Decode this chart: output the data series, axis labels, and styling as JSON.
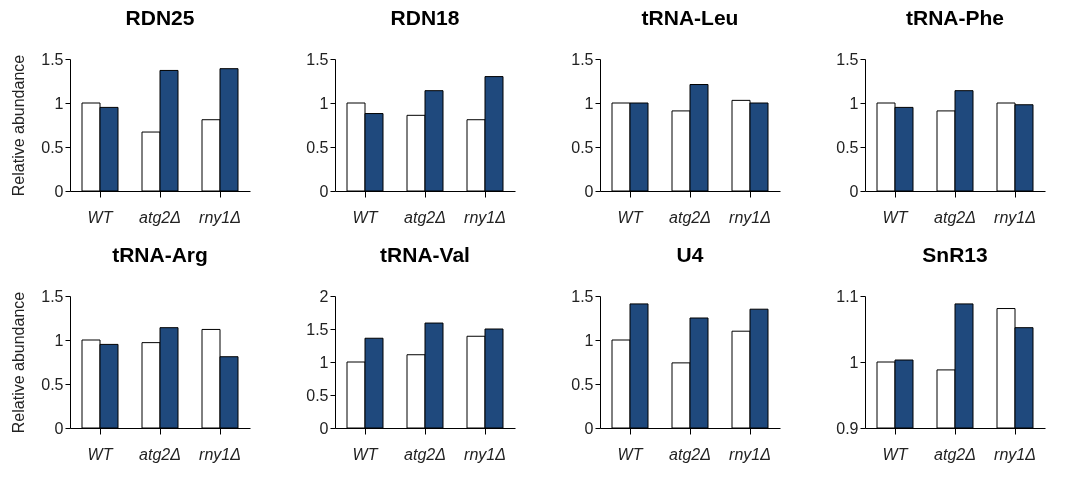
{
  "chart_data": [
    {
      "type": "bar",
      "title": "RDN25",
      "ylabel": "Relative  abundance",
      "categories": [
        "WT",
        "atg2Δ",
        "rny1Δ"
      ],
      "ylim": [
        0,
        1.5
      ],
      "yticks": [
        0,
        0.5,
        1,
        1.5
      ],
      "series": [
        {
          "color": "#ffffff",
          "values": [
            1.0,
            0.67,
            0.81
          ]
        },
        {
          "color": "#1f497d",
          "values": [
            0.95,
            1.37,
            1.39
          ]
        }
      ]
    },
    {
      "type": "bar",
      "title": "RDN18",
      "categories": [
        "WT",
        "atg2Δ",
        "rny1Δ"
      ],
      "ylim": [
        0,
        1.5
      ],
      "yticks": [
        0,
        0.5,
        1,
        1.5
      ],
      "series": [
        {
          "color": "#ffffff",
          "values": [
            1.0,
            0.86,
            0.81
          ]
        },
        {
          "color": "#1f497d",
          "values": [
            0.88,
            1.14,
            1.3
          ]
        }
      ]
    },
    {
      "type": "bar",
      "title": "tRNA-Leu",
      "categories": [
        "WT",
        "atg2Δ",
        "rny1Δ"
      ],
      "ylim": [
        0,
        1.5
      ],
      "yticks": [
        0,
        0.5,
        1,
        1.5
      ],
      "series": [
        {
          "color": "#ffffff",
          "values": [
            1.0,
            0.91,
            1.03
          ]
        },
        {
          "color": "#1f497d",
          "values": [
            1.0,
            1.21,
            1.0
          ]
        }
      ]
    },
    {
      "type": "bar",
      "title": "tRNA-Phe",
      "categories": [
        "WT",
        "atg2Δ",
        "rny1Δ"
      ],
      "ylim": [
        0,
        1.5
      ],
      "yticks": [
        0,
        0.5,
        1,
        1.5
      ],
      "series": [
        {
          "color": "#ffffff",
          "values": [
            1.0,
            0.91,
            1.0
          ]
        },
        {
          "color": "#1f497d",
          "values": [
            0.95,
            1.14,
            0.98
          ]
        }
      ]
    },
    {
      "type": "bar",
      "title": "tRNA-Arg",
      "ylabel": "Relative  abundance",
      "categories": [
        "WT",
        "atg2Δ",
        "rny1Δ"
      ],
      "ylim": [
        0,
        1.5
      ],
      "yticks": [
        0,
        0.5,
        1,
        1.5
      ],
      "series": [
        {
          "color": "#ffffff",
          "values": [
            1.0,
            0.97,
            1.12
          ]
        },
        {
          "color": "#1f497d",
          "values": [
            0.95,
            1.14,
            0.81
          ]
        }
      ]
    },
    {
      "type": "bar",
      "title": "tRNA-Val",
      "categories": [
        "WT",
        "atg2Δ",
        "rny1Δ"
      ],
      "ylim": [
        0,
        2
      ],
      "yticks": [
        0,
        0.5,
        1,
        1.5,
        2
      ],
      "series": [
        {
          "color": "#ffffff",
          "values": [
            1.0,
            1.11,
            1.39
          ]
        },
        {
          "color": "#1f497d",
          "values": [
            1.36,
            1.59,
            1.5
          ]
        }
      ]
    },
    {
      "type": "bar",
      "title": "U4",
      "categories": [
        "WT",
        "atg2Δ",
        "rny1Δ"
      ],
      "ylim": [
        0,
        1.5
      ],
      "yticks": [
        0,
        0.5,
        1,
        1.5
      ],
      "series": [
        {
          "color": "#ffffff",
          "values": [
            1.0,
            0.74,
            1.1
          ]
        },
        {
          "color": "#1f497d",
          "values": [
            1.41,
            1.25,
            1.35
          ]
        }
      ]
    },
    {
      "type": "bar",
      "title": "SnR13",
      "categories": [
        "WT",
        "atg2Δ",
        "rny1Δ"
      ],
      "ylim": [
        0.9,
        1.1
      ],
      "yticks": [
        0.9,
        1,
        1.1
      ],
      "series": [
        {
          "color": "#ffffff",
          "values": [
            1.0,
            0.988,
            1.081
          ]
        },
        {
          "color": "#1f497d",
          "values": [
            1.003,
            1.088,
            1.052
          ]
        }
      ]
    }
  ]
}
